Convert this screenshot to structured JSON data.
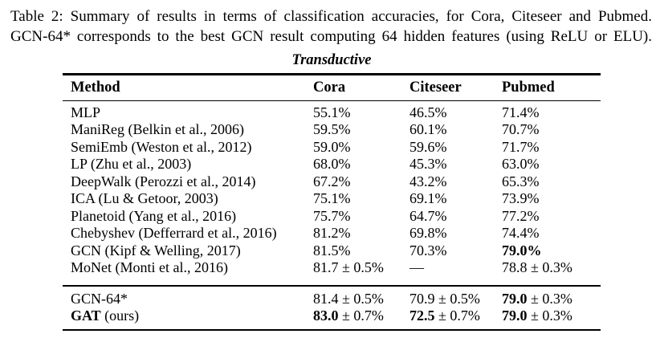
{
  "caption": {
    "line1": "Table 2: Summary of results in terms of classification accuracies, for Cora, Citeseer and Pubmed.",
    "line2": "GCN-64* corresponds to the best GCN result computing 64 hidden features (using ReLU or ELU)."
  },
  "table": {
    "group_title": "Transductive",
    "columns": [
      "Method",
      "Cora",
      "Citeseer",
      "Pubmed"
    ],
    "rows": [
      {
        "cells": [
          [
            {
              "t": "MLP",
              "b": false
            }
          ],
          [
            {
              "t": "55.1%",
              "b": false
            }
          ],
          [
            {
              "t": "46.5%",
              "b": false
            }
          ],
          [
            {
              "t": "71.4%",
              "b": false
            }
          ]
        ]
      },
      {
        "cells": [
          [
            {
              "t": "ManiReg (Belkin et al., 2006)",
              "b": false
            }
          ],
          [
            {
              "t": "59.5%",
              "b": false
            }
          ],
          [
            {
              "t": "60.1%",
              "b": false
            }
          ],
          [
            {
              "t": "70.7%",
              "b": false
            }
          ]
        ]
      },
      {
        "cells": [
          [
            {
              "t": "SemiEmb (Weston et al., 2012)",
              "b": false
            }
          ],
          [
            {
              "t": "59.0%",
              "b": false
            }
          ],
          [
            {
              "t": "59.6%",
              "b": false
            }
          ],
          [
            {
              "t": "71.7%",
              "b": false
            }
          ]
        ]
      },
      {
        "cells": [
          [
            {
              "t": "LP (Zhu et al., 2003)",
              "b": false
            }
          ],
          [
            {
              "t": "68.0%",
              "b": false
            }
          ],
          [
            {
              "t": "45.3%",
              "b": false
            }
          ],
          [
            {
              "t": "63.0%",
              "b": false
            }
          ]
        ]
      },
      {
        "cells": [
          [
            {
              "t": "DeepWalk (Perozzi et al., 2014)",
              "b": false
            }
          ],
          [
            {
              "t": "67.2%",
              "b": false
            }
          ],
          [
            {
              "t": "43.2%",
              "b": false
            }
          ],
          [
            {
              "t": "65.3%",
              "b": false
            }
          ]
        ]
      },
      {
        "cells": [
          [
            {
              "t": "ICA (Lu & Getoor, 2003)",
              "b": false
            }
          ],
          [
            {
              "t": "75.1%",
              "b": false
            }
          ],
          [
            {
              "t": "69.1%",
              "b": false
            }
          ],
          [
            {
              "t": "73.9%",
              "b": false
            }
          ]
        ]
      },
      {
        "cells": [
          [
            {
              "t": "Planetoid (Yang et al., 2016)",
              "b": false
            }
          ],
          [
            {
              "t": "75.7%",
              "b": false
            }
          ],
          [
            {
              "t": "64.7%",
              "b": false
            }
          ],
          [
            {
              "t": "77.2%",
              "b": false
            }
          ]
        ]
      },
      {
        "cells": [
          [
            {
              "t": "Chebyshev (Defferrard et al., 2016)",
              "b": false
            }
          ],
          [
            {
              "t": "81.2%",
              "b": false
            }
          ],
          [
            {
              "t": "69.8%",
              "b": false
            }
          ],
          [
            {
              "t": "74.4%",
              "b": false
            }
          ]
        ]
      },
      {
        "cells": [
          [
            {
              "t": "GCN (Kipf & Welling, 2017)",
              "b": false
            }
          ],
          [
            {
              "t": "81.5%",
              "b": false
            }
          ],
          [
            {
              "t": "70.3%",
              "b": false
            }
          ],
          [
            {
              "t": "79.0%",
              "b": true
            }
          ]
        ]
      },
      {
        "cells": [
          [
            {
              "t": "MoNet (Monti et al., 2016)",
              "b": false
            }
          ],
          [
            {
              "t": "81.7 ± 0.5%",
              "b": false
            }
          ],
          [
            {
              "t": "—",
              "b": false
            }
          ],
          [
            {
              "t": "78.8 ± 0.3%",
              "b": false
            }
          ]
        ]
      }
    ],
    "footer_rows": [
      {
        "cells": [
          [
            {
              "t": "GCN-64*",
              "b": false
            }
          ],
          [
            {
              "t": "81.4 ± 0.5%",
              "b": false
            }
          ],
          [
            {
              "t": "70.9 ± 0.5%",
              "b": false
            }
          ],
          [
            {
              "t": "79.0",
              "b": true
            },
            {
              "t": " ± 0.3%",
              "b": false
            }
          ]
        ]
      },
      {
        "cells": [
          [
            {
              "t": "GAT",
              "b": true
            },
            {
              "t": " (ours)",
              "b": false
            }
          ],
          [
            {
              "t": "83.0",
              "b": true
            },
            {
              "t": " ± 0.7%",
              "b": false
            }
          ],
          [
            {
              "t": "72.5",
              "b": true
            },
            {
              "t": " ± 0.7%",
              "b": false
            }
          ],
          [
            {
              "t": "79.0",
              "b": true
            },
            {
              "t": " ± 0.3%",
              "b": false
            }
          ]
        ]
      }
    ]
  }
}
